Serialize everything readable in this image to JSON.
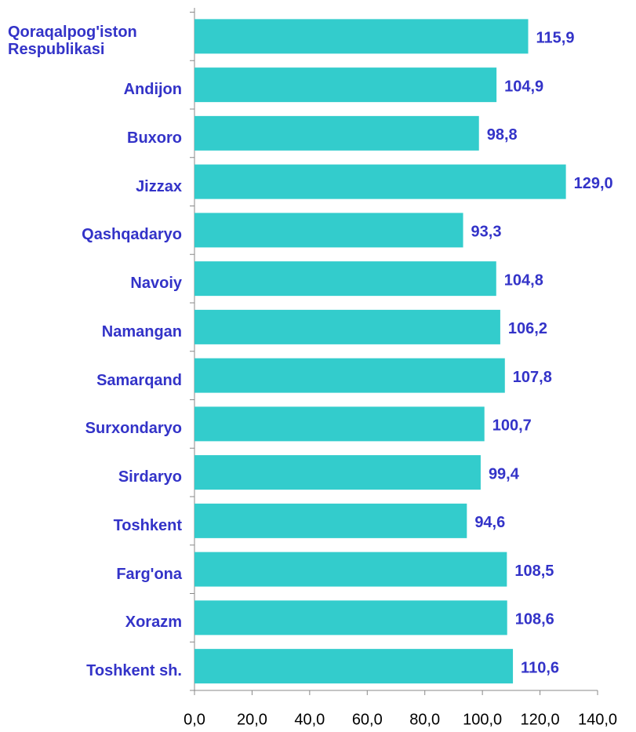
{
  "chart_data": {
    "type": "barh",
    "categories": [
      "Qoraqalpog'iston Respublikasi",
      "Andijon",
      "Buxoro",
      "Jizzax",
      "Qashqadaryo",
      "Navoiy",
      "Namangan",
      "Samarqand",
      "Surxondaryo",
      "Sirdaryo",
      "Toshkent",
      "Farg'ona",
      "Xorazm",
      "Toshkent sh."
    ],
    "values": [
      115.9,
      104.9,
      98.8,
      129.0,
      93.3,
      104.8,
      106.2,
      107.8,
      100.7,
      99.4,
      94.6,
      108.5,
      108.6,
      110.6
    ],
    "value_labels": [
      "115,9",
      "104,9",
      "98,8",
      "129,0",
      "93,3",
      "104,8",
      "106,2",
      "107,8",
      "100,7",
      "99,4",
      "94,6",
      "108,5",
      "108,6",
      "110,6"
    ],
    "color": "#33cccc",
    "xlim": [
      0,
      140
    ],
    "xticks": [
      {
        "value": 0,
        "label": "0,0"
      },
      {
        "value": 20,
        "label": "20,0"
      },
      {
        "value": 40,
        "label": "40,0"
      },
      {
        "value": 60,
        "label": "60,0"
      },
      {
        "value": 80,
        "label": "80,0"
      },
      {
        "value": 100,
        "label": "100,0"
      },
      {
        "value": 120,
        "label": "120,0"
      },
      {
        "value": 140,
        "label": "140,0"
      }
    ],
    "grid": false
  }
}
